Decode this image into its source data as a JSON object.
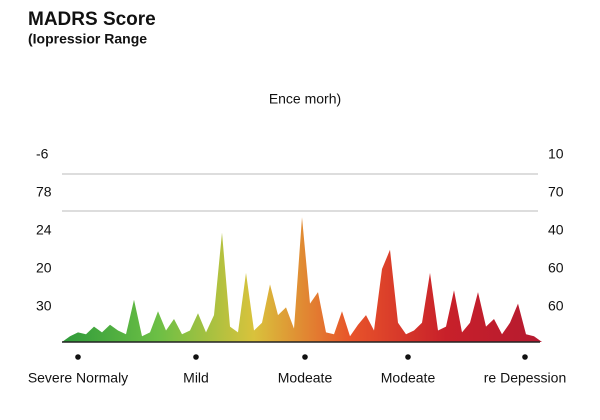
{
  "chart_data": {
    "type": "area",
    "title": "MADRS Score",
    "subtitle": "(Iopressior Range",
    "header": "Ence morh)",
    "left_axis_labels": [
      "-6",
      "78",
      "24",
      "20",
      "30"
    ],
    "right_axis_labels": [
      "10",
      "70",
      "40",
      "60",
      "60"
    ],
    "x_labels": [
      "Severe Normaly",
      "Mild",
      "Modeate",
      "Modeate",
      "re Depession"
    ],
    "values": [
      0,
      3,
      5,
      4,
      8,
      5,
      9,
      6,
      4,
      22,
      3,
      5,
      16,
      6,
      12,
      4,
      6,
      15,
      5,
      14,
      57,
      8,
      5,
      36,
      6,
      10,
      30,
      14,
      18,
      7,
      65,
      20,
      26,
      5,
      4,
      16,
      3,
      9,
      14,
      6,
      38,
      48,
      10,
      4,
      6,
      10,
      36,
      6,
      8,
      27,
      5,
      10,
      26,
      8,
      12,
      4,
      10,
      20,
      4,
      3,
      0
    ],
    "ylim": [
      0,
      100
    ],
    "colors": [
      "#2e9a3a",
      "#6cbf45",
      "#d9c23c",
      "#e8542a",
      "#c8202a",
      "#b51a30"
    ]
  }
}
